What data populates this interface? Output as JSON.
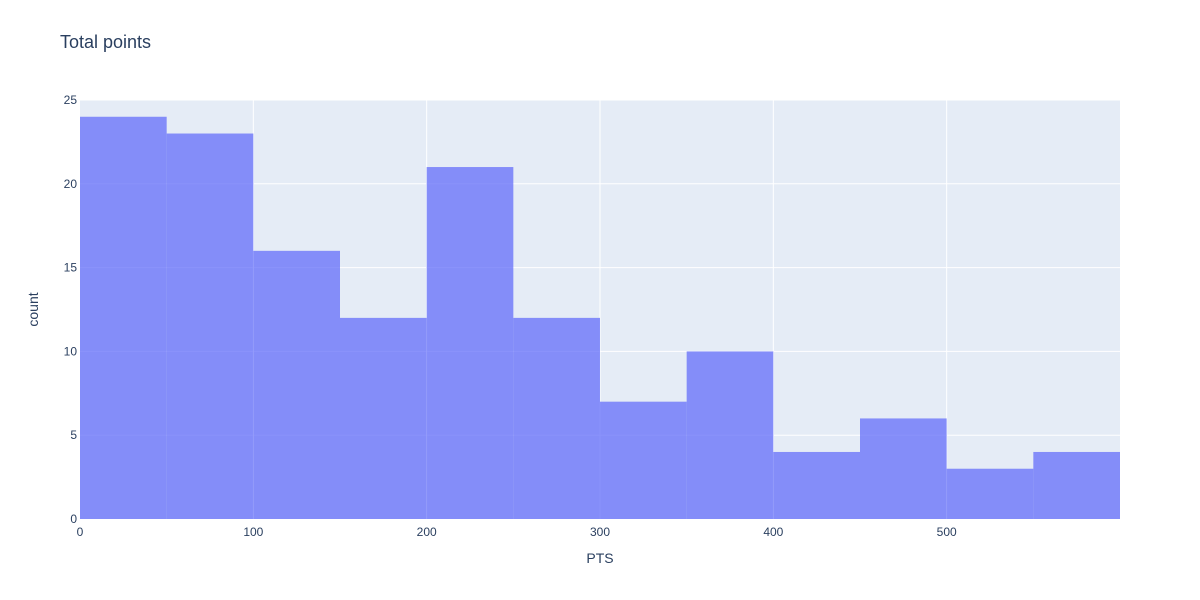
{
  "chart_data": {
    "type": "bar",
    "title": "Total points",
    "xlabel": "PTS",
    "ylabel": "count",
    "bin_size": 50,
    "bins": [
      {
        "start": 0,
        "end": 50,
        "count": 24
      },
      {
        "start": 50,
        "end": 100,
        "count": 23
      },
      {
        "start": 100,
        "end": 150,
        "count": 16
      },
      {
        "start": 150,
        "end": 200,
        "count": 12
      },
      {
        "start": 200,
        "end": 250,
        "count": 21
      },
      {
        "start": 250,
        "end": 300,
        "count": 12
      },
      {
        "start": 300,
        "end": 350,
        "count": 7
      },
      {
        "start": 350,
        "end": 400,
        "count": 10
      },
      {
        "start": 400,
        "end": 450,
        "count": 4
      },
      {
        "start": 450,
        "end": 500,
        "count": 6
      },
      {
        "start": 500,
        "end": 550,
        "count": 3
      },
      {
        "start": 550,
        "end": 600,
        "count": 4
      }
    ],
    "xlim": [
      0,
      600
    ],
    "ylim": [
      0,
      25
    ],
    "x_ticks": [
      0,
      100,
      200,
      300,
      400,
      500
    ],
    "y_ticks": [
      0,
      5,
      10,
      15,
      20,
      25
    ],
    "grid": true,
    "colors": {
      "bar": "#636efa",
      "plot_background": "#e5ecf6",
      "grid": "#ffffff",
      "text": "#2a3f5f"
    }
  }
}
